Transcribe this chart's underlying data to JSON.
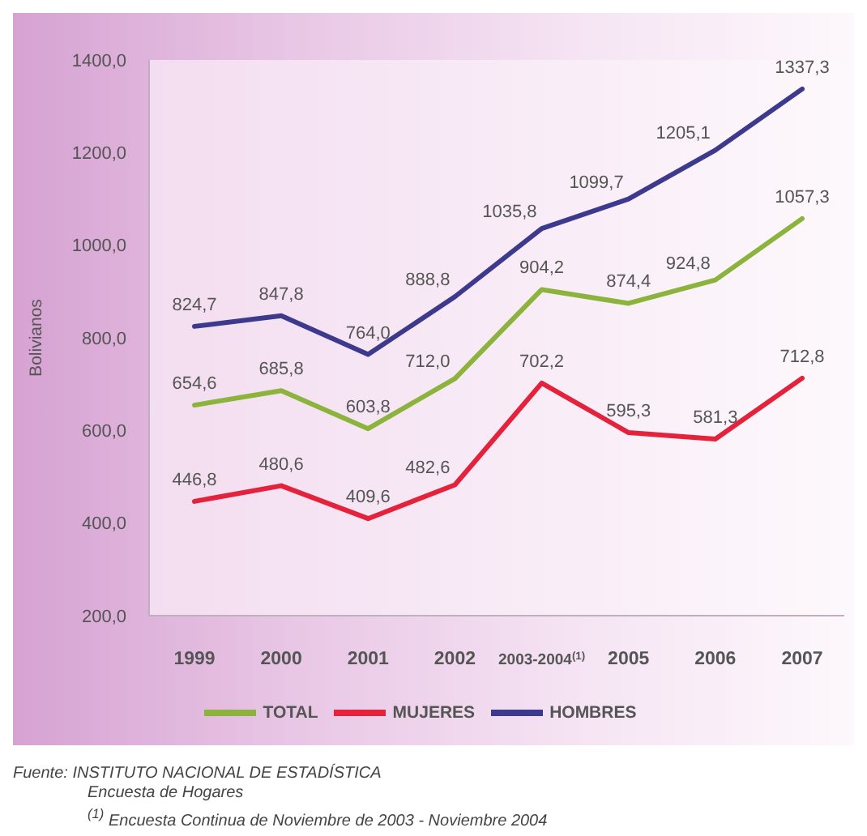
{
  "chart_data": {
    "type": "line",
    "ylabel": "Bolivianos",
    "categories": [
      "1999",
      "2000",
      "2001",
      "2002",
      "2003-2004$^{(1)}$",
      "2005",
      "2006",
      "2007"
    ],
    "series": [
      {
        "name": "TOTAL",
        "color": "#8cb43c",
        "values": [
          654.6,
          685.8,
          603.8,
          712.0,
          904.2,
          874.4,
          924.8,
          1057.3
        ],
        "value_labels": [
          "654,6",
          "685,8",
          "603,8",
          "712,0",
          "904,2",
          "874,4",
          "924,8",
          "1057,3"
        ]
      },
      {
        "name": "MUJERES",
        "color": "#e4223c",
        "values": [
          446.8,
          480.6,
          409.6,
          482.6,
          702.2,
          595.3,
          581.3,
          712.8
        ],
        "value_labels": [
          "446,8",
          "480,6",
          "409,6",
          "482,6",
          "702,2",
          "595,3",
          "581,3",
          "712,8"
        ]
      },
      {
        "name": "HOMBRES",
        "color": "#3d3a8e",
        "values": [
          824.7,
          847.8,
          764.0,
          888.8,
          1035.8,
          1099.7,
          1205.1,
          1337.3
        ],
        "value_labels": [
          "824,7",
          "847,8",
          "764,0",
          "888,8",
          "1035,8",
          "1099,7",
          "1205,1",
          "1337,3"
        ]
      }
    ],
    "ylim": [
      200,
      1400
    ],
    "yticks": [
      {
        "value": 200,
        "label": "200,0"
      },
      {
        "value": 400,
        "label": "400,0"
      },
      {
        "value": 600,
        "label": "600,0"
      },
      {
        "value": 800,
        "label": "800,0"
      },
      {
        "value": 1000,
        "label": "1000,0"
      },
      {
        "value": 1200,
        "label": "1200,0"
      },
      {
        "value": 1400,
        "label": "1400,0"
      }
    ],
    "grid": false,
    "legend": "bottom",
    "marker": "none",
    "line_style": "solid",
    "annotations": [
      "Fuente: INSTITUTO NACIONAL DE ESTADÍSTICA",
      "Encuesta de Hogares",
      "$^{(1)}$ Encuesta Continua de Noviembre de 2003 - Noviembre 2004"
    ]
  }
}
